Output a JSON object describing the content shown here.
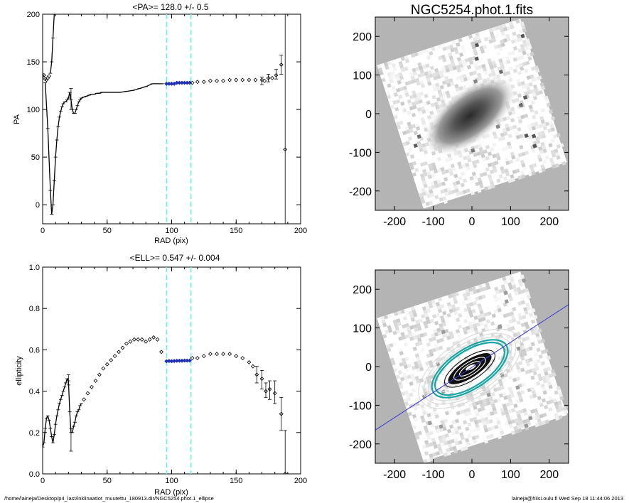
{
  "footer": {
    "path": "/home/laineja/Desktop/p4_last/inklinaatiot_muutettu_180913.dir/NGC5254.phot.1_ellipse",
    "user_time": "laineja@hiisi.oulu.fi  Wed Sep 18 11:44:06 2013"
  },
  "colors": {
    "fit_region_line": "#7fe6e6",
    "fit_points": "#1f2fb5",
    "pa_fit_line": "#3b3bd8",
    "contours_outer": "#d9d9d9",
    "contours_fit": "#1aa5a5"
  },
  "chart_data": [
    {
      "type": "scatter",
      "title": "<PA>= 128.0 +/-   0.5",
      "xlabel": "RAD (pix)",
      "ylabel": "PA",
      "xlim": [
        0,
        200
      ],
      "ylim": [
        -20,
        200
      ],
      "xticks": [
        "0",
        "50",
        "100",
        "150",
        "200"
      ],
      "yticks": [
        "0",
        "50",
        "100",
        "150",
        "200"
      ],
      "fit_region": [
        96,
        115
      ],
      "series": [
        {
          "style": "cross",
          "x": [
            2,
            4,
            6,
            7,
            8,
            9,
            10,
            11,
            12,
            13,
            14,
            15,
            16,
            17,
            18,
            19,
            20,
            21,
            22,
            23,
            24,
            25,
            26,
            27,
            28,
            29,
            30,
            32,
            34,
            36,
            38,
            40,
            42,
            44,
            46,
            48,
            50,
            55,
            60,
            65,
            70,
            75,
            80,
            85,
            90,
            93
          ],
          "y": [
            128,
            80,
            15,
            -10,
            0,
            25,
            50,
            68,
            82,
            92,
            98,
            103,
            106,
            108,
            108,
            110,
            112,
            118,
            110,
            100,
            96,
            96,
            100,
            104,
            108,
            110,
            112,
            113,
            114,
            115,
            116,
            116,
            117,
            117,
            118,
            118,
            118,
            118,
            118,
            119,
            120,
            122,
            124,
            127,
            127,
            127
          ]
        },
        {
          "style": "steep",
          "x": [
            6,
            7,
            8,
            9,
            10
          ],
          "y": [
            138,
            150,
            175,
            200,
            200
          ]
        },
        {
          "style": "open",
          "x": [
            0,
            1,
            2,
            3,
            4,
            5
          ],
          "y": [
            135,
            136,
            132,
            131,
            133,
            135
          ]
        },
        {
          "style": "blue",
          "x": [
            96,
            98,
            100,
            102,
            104,
            106,
            108,
            110,
            112,
            114
          ],
          "y": [
            127,
            127,
            127,
            127,
            128,
            128,
            128,
            128,
            128,
            128
          ]
        },
        {
          "style": "open",
          "x": [
            116,
            120,
            125,
            130,
            135,
            140,
            145,
            150,
            155,
            160,
            165,
            170,
            172,
            175,
            178,
            181,
            185,
            188
          ],
          "y": [
            128,
            129,
            129,
            130,
            130,
            130,
            131,
            131,
            131,
            131,
            131,
            131,
            130,
            133,
            133,
            136,
            147,
            58
          ]
        }
      ],
      "errors": [
        {
          "x": 22,
          "y": 110,
          "lo": 100,
          "hi": 122
        },
        {
          "x": 170,
          "y": 130,
          "lo": 126,
          "hi": 134
        },
        {
          "x": 175,
          "y": 133,
          "lo": 129,
          "hi": 137
        },
        {
          "x": 181,
          "y": 137,
          "lo": 132,
          "hi": 142
        },
        {
          "x": 185,
          "y": 147,
          "lo": 137,
          "hi": 157
        },
        {
          "x": 188,
          "y": 58,
          "lo": -20,
          "hi": 200
        }
      ]
    },
    {
      "type": "scatter",
      "title": "<ELL>= 0.547 +/-  0.004",
      "xlabel": "RAD (pix)",
      "ylabel": "ellipticity",
      "xlim": [
        0,
        200
      ],
      "ylim": [
        0.0,
        1.0
      ],
      "xticks": [
        "0",
        "50",
        "100",
        "150",
        "200"
      ],
      "yticks": [
        "0.0",
        "0.2",
        "0.4",
        "0.6",
        "0.8",
        "1.0"
      ],
      "fit_region": [
        96,
        115
      ],
      "series": [
        {
          "style": "cross",
          "x": [
            0,
            1,
            2,
            3,
            4,
            5,
            6,
            7,
            8,
            9,
            10,
            11,
            12,
            13,
            14,
            15,
            16,
            17,
            18,
            19,
            20,
            21,
            22,
            23,
            24,
            25,
            26,
            27,
            28,
            29,
            30
          ],
          "y": [
            0.13,
            0.15,
            0.22,
            0.27,
            0.28,
            0.26,
            0.22,
            0.18,
            0.15,
            0.19,
            0.24,
            0.28,
            0.31,
            0.34,
            0.36,
            0.38,
            0.4,
            0.42,
            0.44,
            0.46,
            0.45,
            0.3,
            0.2,
            0.2,
            0.23,
            0.25,
            0.28,
            0.3,
            0.31,
            0.33,
            0.34
          ]
        },
        {
          "style": "open",
          "x": [
            32,
            35,
            38,
            41,
            44,
            47,
            50,
            53,
            56,
            59,
            62,
            65,
            68,
            71,
            74,
            77,
            80,
            83,
            86,
            89,
            92
          ],
          "y": [
            0.36,
            0.39,
            0.42,
            0.45,
            0.48,
            0.51,
            0.53,
            0.55,
            0.57,
            0.59,
            0.61,
            0.63,
            0.64,
            0.65,
            0.65,
            0.65,
            0.64,
            0.65,
            0.66,
            0.65,
            0.59
          ]
        },
        {
          "style": "blue",
          "x": [
            96,
            98,
            100,
            102,
            104,
            106,
            108,
            110,
            112,
            114
          ],
          "y": [
            0.545,
            0.546,
            0.545,
            0.546,
            0.547,
            0.547,
            0.547,
            0.548,
            0.548,
            0.548
          ]
        },
        {
          "style": "open",
          "x": [
            116,
            120,
            125,
            130,
            135,
            140,
            145,
            150,
            155,
            160,
            163,
            166,
            170,
            173,
            176,
            180,
            185,
            188
          ],
          "y": [
            0.56,
            0.56,
            0.57,
            0.58,
            0.58,
            0.58,
            0.58,
            0.57,
            0.56,
            0.54,
            0.52,
            0.48,
            0.46,
            0.4,
            0.41,
            0.39,
            0.29,
            0.0
          ]
        }
      ],
      "errors": [
        {
          "x": 20,
          "y": 0.45,
          "lo": 0.43,
          "hi": 0.48
        },
        {
          "x": 22,
          "y": 0.2,
          "lo": 0.11,
          "hi": 0.22
        },
        {
          "x": 166,
          "y": 0.48,
          "lo": 0.44,
          "hi": 0.52
        },
        {
          "x": 170,
          "y": 0.46,
          "lo": 0.41,
          "hi": 0.5
        },
        {
          "x": 173,
          "y": 0.4,
          "lo": 0.37,
          "hi": 0.44
        },
        {
          "x": 176,
          "y": 0.41,
          "lo": 0.36,
          "hi": 0.45
        },
        {
          "x": 180,
          "y": 0.39,
          "lo": 0.34,
          "hi": 0.45
        },
        {
          "x": 185,
          "y": 0.29,
          "lo": 0.21,
          "hi": 0.37
        },
        {
          "x": 188,
          "y": 0.0,
          "lo": 0.0,
          "hi": 0.21
        }
      ]
    },
    {
      "type": "heatmap",
      "title": "NGC5254.phot.1.fits",
      "xlim": [
        -250,
        250
      ],
      "ylim": [
        -250,
        250
      ],
      "xticks": [
        "-200",
        "-100",
        "0",
        "100",
        "200"
      ],
      "yticks": [
        "-200",
        "-100",
        "0",
        "100",
        "200"
      ],
      "galaxy_pa_deg": 128,
      "galaxy_ellipticity": 0.547
    },
    {
      "type": "heatmap",
      "xlim": [
        -250,
        250
      ],
      "ylim": [
        -250,
        250
      ],
      "xticks": [
        "-200",
        "-100",
        "0",
        "100",
        "200"
      ],
      "yticks": [
        "-200",
        "-100",
        "0",
        "100",
        "200"
      ],
      "overlay": "isophote contours with major-axis line",
      "pa_deg": 128
    }
  ]
}
